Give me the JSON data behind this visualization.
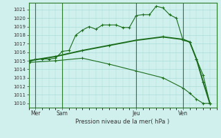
{
  "background_color": "#cff0ec",
  "grid_color": "#aaddd8",
  "line_color": "#1a6b1a",
  "title": "Pression niveau de la mer( hPa )",
  "ylim": [
    1009.5,
    1021.8
  ],
  "yticks": [
    1010,
    1011,
    1012,
    1013,
    1014,
    1015,
    1016,
    1017,
    1018,
    1019,
    1020,
    1021
  ],
  "xlim": [
    0,
    28
  ],
  "day_labels": [
    "Mer",
    "Sam",
    "Jeu",
    "Ven"
  ],
  "day_positions": [
    1,
    5,
    16,
    23
  ],
  "vline_positions": [
    1,
    5,
    16,
    23
  ],
  "series1_x": [
    0,
    1,
    2,
    3,
    4,
    5,
    6,
    7,
    8,
    9,
    10,
    11,
    12,
    13,
    14,
    15,
    16,
    17,
    18,
    19,
    20,
    21,
    22,
    23,
    24,
    25,
    26,
    27
  ],
  "series1_y": [
    1014.8,
    1015.2,
    1015.2,
    1015.2,
    1015.3,
    1016.1,
    1016.2,
    1018.0,
    1018.6,
    1019.0,
    1018.7,
    1019.2,
    1019.2,
    1019.2,
    1018.9,
    1018.9,
    1020.3,
    1020.4,
    1020.4,
    1021.4,
    1021.2,
    1020.4,
    1020.0,
    1017.4,
    1017.2,
    1015.2,
    1013.3,
    1010.0
  ],
  "series2_x": [
    0,
    4,
    8,
    12,
    16,
    20,
    23,
    24,
    25,
    26,
    27
  ],
  "series2_y": [
    1015.0,
    1015.5,
    1016.2,
    1016.8,
    1017.4,
    1017.8,
    1017.5,
    1017.2,
    1015.2,
    1012.5,
    1010.0
  ],
  "series3_x": [
    0,
    4,
    8,
    12,
    16,
    20,
    23,
    24,
    25,
    26,
    27
  ],
  "series3_y": [
    1014.8,
    1015.0,
    1015.3,
    1014.6,
    1013.8,
    1013.0,
    1011.8,
    1011.2,
    1010.5,
    1010.0,
    1010.0
  ]
}
